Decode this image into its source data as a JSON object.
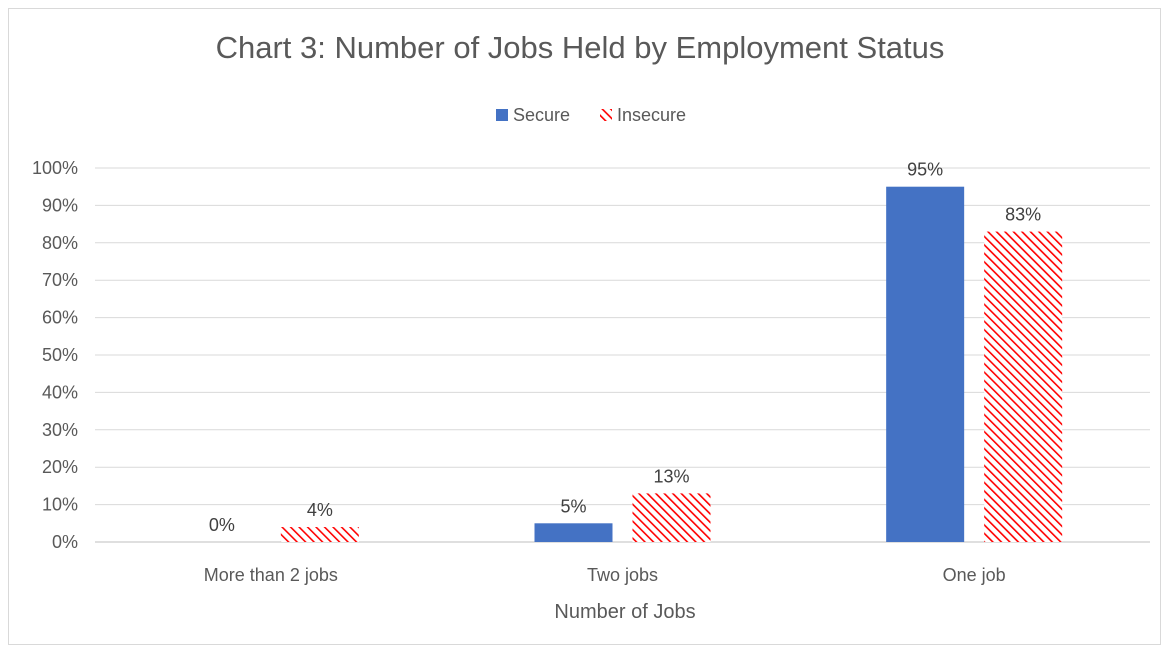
{
  "chart_data": {
    "type": "bar",
    "title": "Chart 3: Number of Jobs Held by Employment Status",
    "xlabel": "Number of Jobs",
    "ylabel": "",
    "categories": [
      "More than 2 jobs",
      "Two jobs",
      "One job"
    ],
    "series": [
      {
        "name": "Secure",
        "values": [
          0,
          5,
          95
        ],
        "labels": [
          "0%",
          "5%",
          "95%"
        ],
        "color": "#4472c4",
        "fill": "solid"
      },
      {
        "name": "Insecure",
        "values": [
          4,
          13,
          83
        ],
        "labels": [
          "4%",
          "13%",
          "83%"
        ],
        "color": "#ff0000",
        "fill": "diagonal-hatch"
      }
    ],
    "ylim": [
      0,
      100
    ],
    "yticks": [
      "0%",
      "10%",
      "20%",
      "30%",
      "40%",
      "50%",
      "60%",
      "70%",
      "80%",
      "90%",
      "100%"
    ],
    "grid": true,
    "legend_position": "top"
  }
}
